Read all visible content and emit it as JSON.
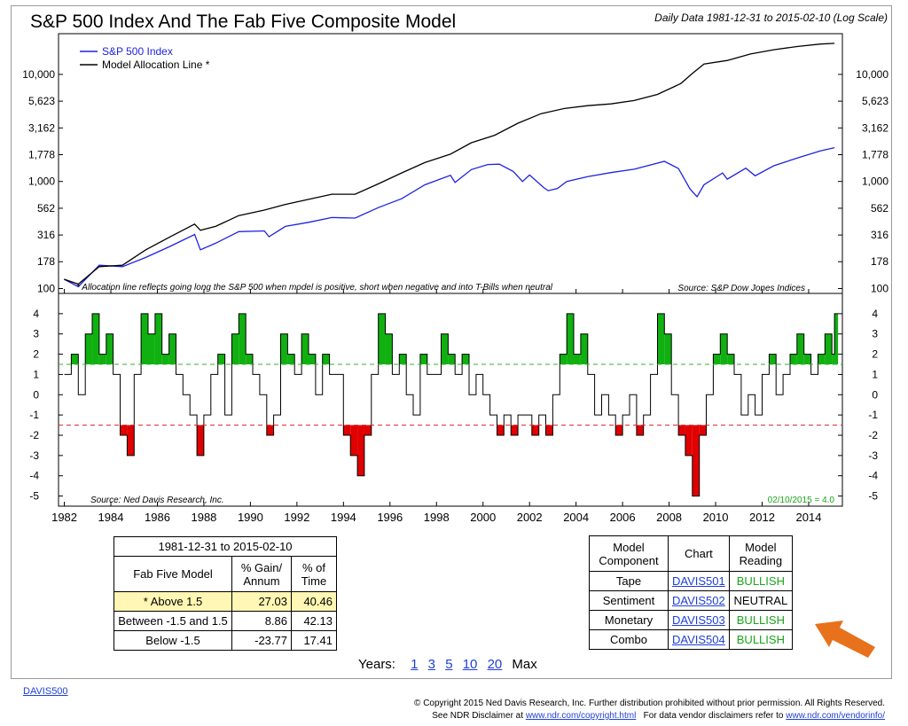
{
  "title": "S&P 500 Index And The Fab Five Composite Model",
  "subtitle": "Daily Data 1981-12-31 to 2015-02-10 (Log Scale)",
  "top_panel": {
    "legend": [
      {
        "name": "S&P 500 Index",
        "color": "#1f22e0"
      },
      {
        "name": "Model Allocation Line *",
        "color": "#000000"
      }
    ],
    "footnote": "* Allocation line reflects going long the S&P 500 when model is positive, short when negative and into T-Bills when neutral",
    "source": "Source:  S&P Dow Jones Indices"
  },
  "bottom_panel": {
    "source": "Source:  Ned Davis Research, Inc.",
    "reading_label": "02/10/2015 = 4.0"
  },
  "chart_data": [
    {
      "type": "line",
      "title": "S&P 500 Index And The Fab Five Composite Model",
      "scale": "log",
      "ylim": [
        90,
        24000
      ],
      "y_ticks": [
        "10,000",
        "5,623",
        "3,162",
        "1,778",
        "1,000",
        "562",
        "316",
        "178",
        "100"
      ],
      "y_tick_values": [
        10000,
        5623,
        3162,
        1778,
        1000,
        562,
        316,
        178,
        100
      ],
      "x_ticks": [
        "1982",
        "1984",
        "1986",
        "1988",
        "1990",
        "1992",
        "1994",
        "1996",
        "1998",
        "2000",
        "2002",
        "2004",
        "2006",
        "2008",
        "2010",
        "2012",
        "2014"
      ],
      "xlim": [
        1981.75,
        2015.45
      ],
      "series": [
        {
          "name": "S&P 500 Index",
          "color": "#1f22e0",
          "x": [
            1981.99,
            1982.6,
            1983.5,
            1984.5,
            1985.5,
            1986.5,
            1987.6,
            1987.85,
            1988.5,
            1989.5,
            1990.6,
            1990.8,
            1991.5,
            1992.5,
            1993.5,
            1994.5,
            1995.5,
            1996.5,
            1997.5,
            1998.6,
            1998.8,
            1999.5,
            2000.2,
            2000.7,
            2001.3,
            2001.7,
            2002.0,
            2002.6,
            2002.8,
            2003.2,
            2003.6,
            2004.5,
            2005.5,
            2006.5,
            2007.8,
            2008.4,
            2008.9,
            2009.2,
            2009.5,
            2010.3,
            2010.5,
            2011.3,
            2011.7,
            2012.5,
            2013.5,
            2014.5,
            2015.11
          ],
          "y": [
            122,
            104,
            165,
            160,
            195,
            245,
            320,
            230,
            265,
            340,
            345,
            305,
            380,
            415,
            460,
            455,
            570,
            690,
            930,
            1140,
            980,
            1290,
            1440,
            1450,
            1240,
            1000,
            1150,
            880,
            820,
            860,
            1000,
            1110,
            1210,
            1300,
            1540,
            1320,
            850,
            720,
            930,
            1200,
            1050,
            1330,
            1130,
            1400,
            1650,
            1930,
            2068
          ]
        },
        {
          "name": "Model Allocation Line *",
          "color": "#000000",
          "x": [
            1981.99,
            1982.6,
            1983.5,
            1984.5,
            1985.5,
            1986.5,
            1987.6,
            1987.85,
            1988.5,
            1989.5,
            1990.6,
            1991.5,
            1992.5,
            1993.5,
            1994.5,
            1995.5,
            1996.5,
            1997.5,
            1998.6,
            1999.5,
            2000.5,
            2001.5,
            2002.5,
            2003.5,
            2004.5,
            2005.5,
            2006.5,
            2007.5,
            2008.5,
            2009.0,
            2009.5,
            2010.5,
            2011.5,
            2012.5,
            2013.5,
            2014.5,
            2015.11
          ],
          "y": [
            122,
            110,
            160,
            165,
            230,
            300,
            400,
            350,
            380,
            480,
            540,
            610,
            680,
            760,
            760,
            950,
            1200,
            1500,
            1800,
            2300,
            2700,
            3500,
            4300,
            4800,
            5100,
            5300,
            5700,
            6500,
            8200,
            10200,
            12500,
            13500,
            15500,
            17000,
            18200,
            19200,
            19500
          ]
        }
      ]
    },
    {
      "type": "area",
      "title": "Fab Five Composite Model",
      "ylim": [
        -5.5,
        5.0
      ],
      "y_ticks": [
        "4",
        "3",
        "2",
        "1",
        "0",
        "-1",
        "-2",
        "-3",
        "-4",
        "-5"
      ],
      "y_tick_values": [
        4,
        3,
        2,
        1,
        0,
        -1,
        -2,
        -3,
        -4,
        -5
      ],
      "thresholds": [
        {
          "value": 1.5,
          "color": "#2db52d",
          "style": "dashed"
        },
        {
          "value": -1.5,
          "color": "#e02020",
          "style": "dashed"
        }
      ],
      "fill_colors": {
        "above": "#10b010",
        "below": "#e00000"
      },
      "series": [
        {
          "name": "Fab Five Composite",
          "x": [
            1982.0,
            1982.3,
            1982.6,
            1982.9,
            1983.2,
            1983.5,
            1983.8,
            1984.1,
            1984.4,
            1984.7,
            1985.0,
            1985.3,
            1985.6,
            1985.9,
            1986.2,
            1986.5,
            1986.8,
            1987.1,
            1987.4,
            1987.7,
            1988.0,
            1988.3,
            1988.6,
            1988.9,
            1989.2,
            1989.5,
            1989.8,
            1990.1,
            1990.4,
            1990.7,
            1991.0,
            1991.3,
            1991.6,
            1991.9,
            1992.2,
            1992.5,
            1992.8,
            1993.1,
            1993.4,
            1993.7,
            1994.0,
            1994.3,
            1994.6,
            1994.9,
            1995.2,
            1995.5,
            1995.8,
            1996.1,
            1996.4,
            1996.7,
            1997.0,
            1997.3,
            1997.6,
            1997.9,
            1998.2,
            1998.5,
            1998.8,
            1999.1,
            1999.4,
            1999.7,
            2000.0,
            2000.3,
            2000.6,
            2000.9,
            2001.2,
            2001.5,
            2001.8,
            2002.1,
            2002.4,
            2002.7,
            2003.0,
            2003.3,
            2003.6,
            2003.9,
            2004.2,
            2004.5,
            2004.8,
            2005.1,
            2005.4,
            2005.7,
            2006.0,
            2006.3,
            2006.6,
            2006.9,
            2007.2,
            2007.5,
            2007.8,
            2008.1,
            2008.4,
            2008.7,
            2009.0,
            2009.3,
            2009.6,
            2009.9,
            2010.2,
            2010.5,
            2010.8,
            2011.1,
            2011.4,
            2011.7,
            2012.0,
            2012.3,
            2012.6,
            2012.9,
            2013.2,
            2013.5,
            2013.8,
            2014.1,
            2014.4,
            2014.7,
            2015.0,
            2015.11
          ],
          "y": [
            1,
            2,
            0,
            3,
            4,
            2,
            3,
            1,
            -2,
            -3,
            1,
            4,
            3,
            4,
            2,
            3,
            1,
            0,
            -1,
            -3,
            -1,
            1,
            2,
            -1,
            3,
            4,
            2,
            1,
            0,
            -2,
            -1,
            3,
            2,
            1,
            3,
            2,
            0,
            2,
            1,
            1,
            -2,
            -3,
            -4,
            -2,
            1,
            4,
            3,
            1,
            2,
            0,
            -1,
            2,
            1,
            1,
            3,
            2,
            1,
            2,
            0,
            1,
            0,
            -1,
            -2,
            -1,
            -2,
            -1,
            -1,
            -2,
            -1,
            -2,
            0,
            2,
            4,
            2,
            3,
            1,
            -1,
            0,
            -1,
            -2,
            -1,
            0,
            -2,
            -1,
            1,
            4,
            3,
            0,
            -2,
            -3,
            -5,
            -2,
            0,
            2,
            3,
            2,
            1,
            -1,
            0,
            -1,
            1,
            2,
            0,
            1,
            2,
            3,
            2,
            1,
            2,
            3,
            2,
            4
          ]
        }
      ],
      "x_ticks": [
        "1982",
        "1984",
        "1986",
        "1988",
        "1990",
        "1992",
        "1994",
        "1996",
        "1998",
        "2000",
        "2002",
        "2004",
        "2006",
        "2008",
        "2010",
        "2012",
        "2014"
      ]
    }
  ],
  "perf_table": {
    "period": "1981-12-31 to 2015-02-10",
    "col_model": "Fab Five Model",
    "col_gain": "% Gain/ Annum",
    "col_time": "% of Time",
    "rows": [
      {
        "label": "* Above 1.5",
        "gain": "27.03",
        "time": "40.46"
      },
      {
        "label": "Between -1.5 and 1.5",
        "gain": "8.86",
        "time": "42.13"
      },
      {
        "label": "Below -1.5",
        "gain": "-23.77",
        "time": "17.41"
      }
    ]
  },
  "component_table": {
    "col_component": "Model Component",
    "col_chart": "Chart",
    "col_reading": "Model Reading",
    "rows": [
      {
        "component": "Tape",
        "chart": "DAVIS501",
        "reading": "BULLISH"
      },
      {
        "component": "Sentiment",
        "chart": "DAVIS502",
        "reading": "NEUTRAL"
      },
      {
        "component": "Monetary",
        "chart": "DAVIS503",
        "reading": "BULLISH"
      },
      {
        "component": "Combo",
        "chart": "DAVIS504",
        "reading": "BULLISH"
      }
    ]
  },
  "years_nav": {
    "label": "Years:",
    "options": [
      "1",
      "3",
      "5",
      "10",
      "20"
    ],
    "max": "Max"
  },
  "footer": {
    "link": "DAVIS500",
    "copyright": "© Copyright 2015 Ned Davis Research, Inc. Further distribution prohibited without prior permission. All Rights Reserved.",
    "disclaimer_pre": "See NDR Disclaimer at",
    "disclaimer_link": "www.ndr.com/copyright.html",
    "disclaimer_mid": "For data vendor disclaimers refer to",
    "vendor_link": "www.ndr.com/vendorinfo/"
  },
  "accent_colors": {
    "arrow": "#e8711c",
    "link": "#1f3fd6",
    "bullish": "#1aa51a"
  }
}
